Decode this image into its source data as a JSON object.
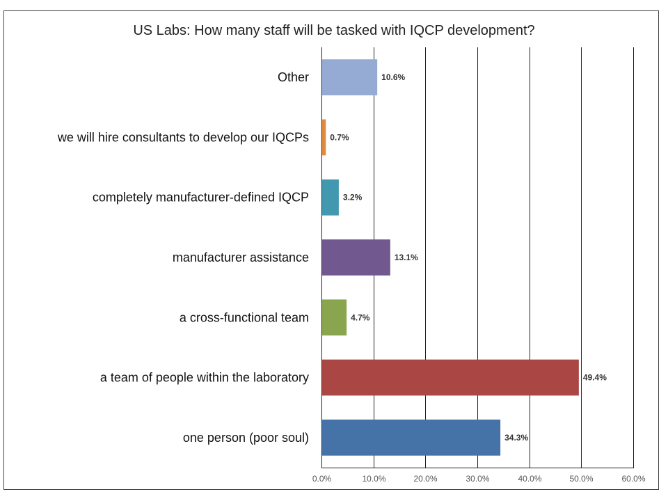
{
  "chart_data": {
    "type": "bar",
    "orientation": "horizontal",
    "title": "US Labs: How many staff will be tasked with IQCP development?",
    "categories": [
      "Other",
      "we will hire consultants to develop our IQCPs",
      "completely manufacturer-defined IQCP",
      "manufacturer assistance",
      "a cross-functional team",
      "a team of people within the laboratory",
      "one person (poor soul)"
    ],
    "values": [
      10.6,
      0.7,
      3.2,
      13.1,
      4.7,
      49.4,
      34.3
    ],
    "data_labels": [
      "10.6%",
      "0.7%",
      "3.2%",
      "13.1%",
      "4.7%",
      "49.4%",
      "34.3%"
    ],
    "colors": [
      "#95abd3",
      "#e08a3c",
      "#4198af",
      "#71588f",
      "#89a54e",
      "#aa4643",
      "#4572a7"
    ],
    "xlim": [
      0,
      60
    ],
    "x_ticks": [
      "0.0%",
      "10.0%",
      "20.0%",
      "30.0%",
      "40.0%",
      "50.0%",
      "60.0%"
    ],
    "grid": "vertical",
    "legend": "none"
  }
}
